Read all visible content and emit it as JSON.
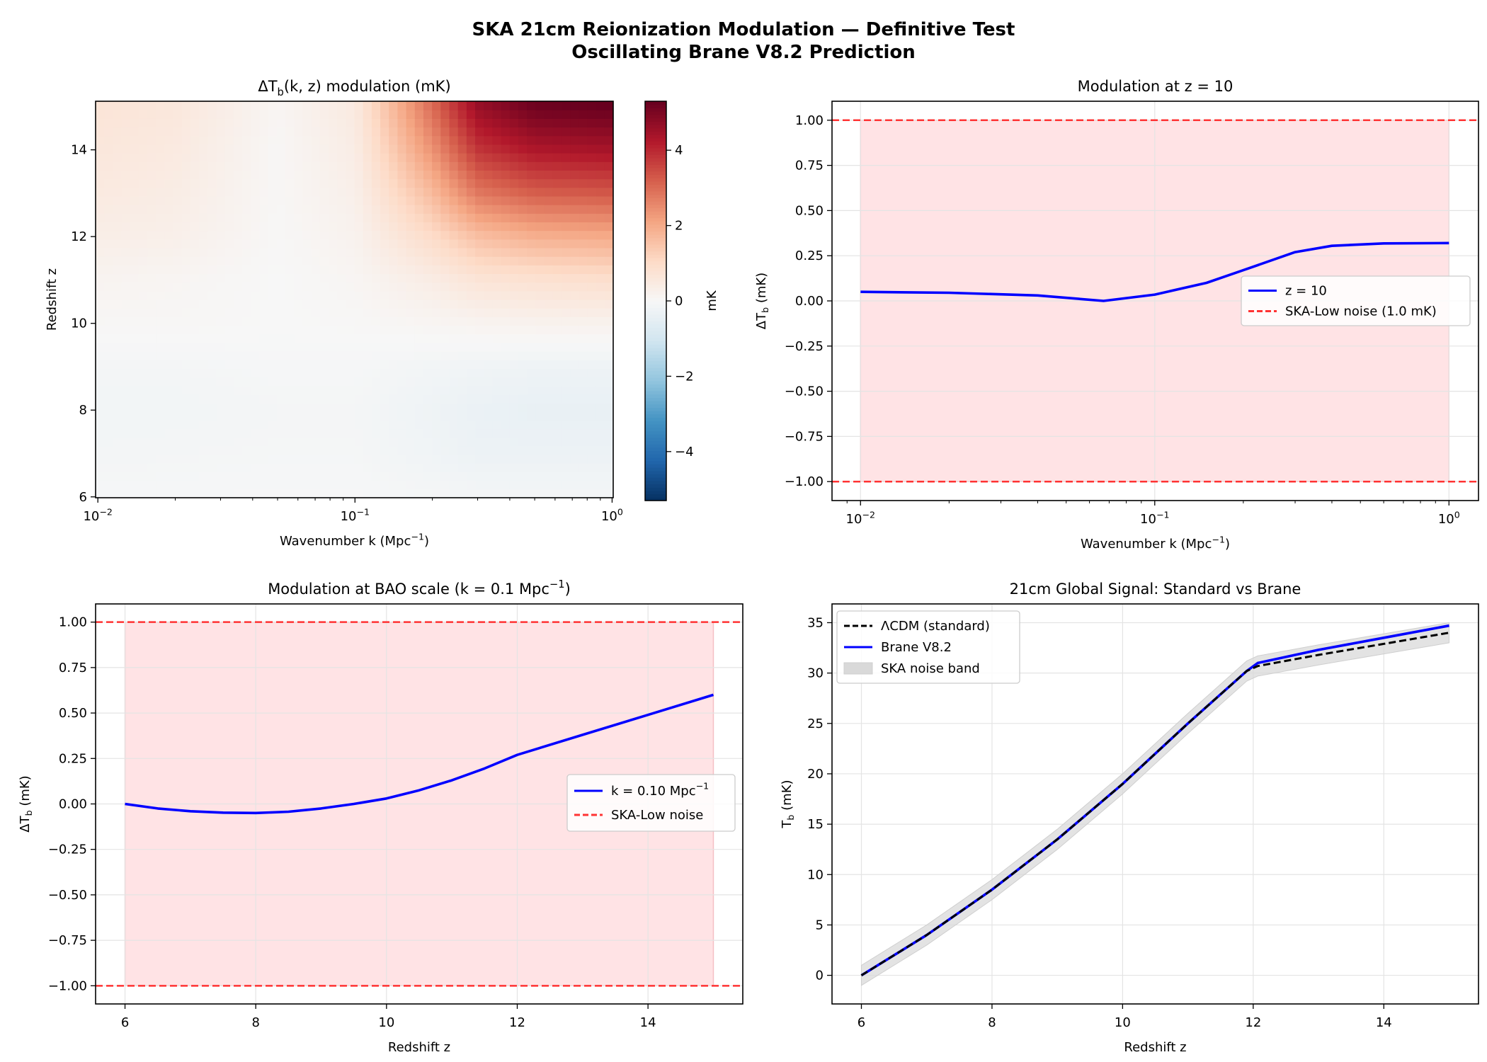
{
  "suptitle": [
    "SKA 21cm Reionization Modulation — Definitive Test",
    "Oscillating Brane V8.2 Prediction"
  ],
  "chart_data": [
    {
      "type": "heatmap",
      "title": "ΔT_{b}(k, z) modulation (mK)",
      "xlabel": "Wavenumber k (Mpc^{−1})",
      "ylabel": "Redshift z",
      "xscale": "log",
      "xlim": [
        0.0098,
        1.01
      ],
      "ylim": [
        5.98,
        15.12
      ],
      "xticks": [
        0.01,
        0.1,
        1
      ],
      "xtick_labels": [
        "10^{−2}",
        "10^{−1}",
        "10^{0}"
      ],
      "yticks": [
        6,
        8,
        10,
        12,
        14
      ],
      "ytick_labels": [
        "6",
        "8",
        "10",
        "12",
        "14"
      ],
      "k": [
        0.01,
        0.02,
        0.05,
        0.1,
        0.2,
        0.3,
        0.5,
        1.0
      ],
      "z": [
        6,
        7,
        8,
        9,
        10,
        11,
        12,
        13,
        14,
        15
      ],
      "values": [
        [
          -0.05,
          -0.05,
          -0.03,
          -0.03,
          -0.08,
          -0.1,
          -0.1,
          -0.1
        ],
        [
          -0.12,
          -0.1,
          -0.08,
          -0.08,
          -0.2,
          -0.3,
          -0.3,
          -0.3
        ],
        [
          -0.15,
          -0.15,
          -0.1,
          -0.1,
          -0.25,
          -0.35,
          -0.4,
          -0.4
        ],
        [
          -0.1,
          -0.1,
          -0.05,
          -0.05,
          -0.15,
          -0.2,
          -0.25,
          -0.25
        ],
        [
          0.05,
          0.05,
          0.0,
          0.03,
          0.1,
          0.15,
          0.2,
          0.2
        ],
        [
          0.15,
          0.1,
          0.0,
          0.1,
          0.4,
          0.7,
          0.8,
          0.9
        ],
        [
          0.35,
          0.3,
          0.03,
          0.2,
          1.0,
          1.6,
          1.9,
          2.0
        ],
        [
          0.5,
          0.4,
          0.05,
          0.3,
          1.7,
          2.8,
          3.2,
          3.3
        ],
        [
          0.6,
          0.5,
          0.05,
          0.4,
          2.4,
          3.8,
          4.3,
          4.4
        ],
        [
          0.7,
          0.6,
          0.1,
          0.5,
          3.0,
          4.6,
          5.2,
          5.3
        ]
      ],
      "colorbar": {
        "label": "mK",
        "colormap": "RdBu_r",
        "range": [
          -5.3,
          5.3
        ],
        "ticks": [
          -4,
          -2,
          0,
          2,
          4
        ],
        "tick_labels": [
          "−4",
          "−2",
          "0",
          "2",
          "4"
        ]
      }
    },
    {
      "type": "line",
      "title": "Modulation at z = 10",
      "xlabel": "Wavenumber k (Mpc^{−1})",
      "ylabel": "ΔT_{b} (mK)",
      "xscale": "log",
      "xlim": [
        0.008,
        1.26
      ],
      "ylim": [
        -1.105,
        1.105
      ],
      "grid": true,
      "xticks": [
        0.01,
        0.1,
        1
      ],
      "xtick_labels": [
        "10^{−2}",
        "10^{−1}",
        "10^{0}"
      ],
      "yticks": [
        -1,
        -0.75,
        -0.5,
        -0.25,
        0,
        0.25,
        0.5,
        0.75,
        1
      ],
      "ytick_labels": [
        "−1.00",
        "−0.75",
        "−0.50",
        "−0.25",
        "0.00",
        "0.25",
        "0.50",
        "0.75",
        "1.00"
      ],
      "band": {
        "x": [
          0.01,
          1
        ],
        "y": [
          -1,
          1
        ],
        "color": "#ffe3e5"
      },
      "series": [
        {
          "name": "z = 10",
          "color": "#0000ff",
          "style": "solid",
          "x": [
            0.01,
            0.02,
            0.04,
            0.067,
            0.1,
            0.15,
            0.2,
            0.3,
            0.4,
            0.6,
            1.0
          ],
          "y": [
            0.05,
            0.045,
            0.03,
            0.0,
            0.035,
            0.1,
            0.17,
            0.27,
            0.305,
            0.318,
            0.32
          ]
        }
      ],
      "hlines": {
        "name": "SKA-Low noise (1.0 mK)",
        "y": [
          1,
          -1
        ],
        "color": "#ff3333",
        "style": "dashed"
      },
      "legend": "center-right"
    },
    {
      "type": "line",
      "title": "Modulation at BAO scale (k = 0.1 Mpc^{−1})",
      "xlabel": "Redshift z",
      "ylabel": "ΔT_{b} (mK)",
      "xscale": "linear",
      "xlim": [
        5.55,
        15.45
      ],
      "ylim": [
        -1.1,
        1.1
      ],
      "grid": true,
      "xticks": [
        6,
        8,
        10,
        12,
        14
      ],
      "xtick_labels": [
        "6",
        "8",
        "10",
        "12",
        "14"
      ],
      "yticks": [
        -1,
        -0.75,
        -0.5,
        -0.25,
        0,
        0.25,
        0.5,
        0.75,
        1
      ],
      "ytick_labels": [
        "−1.00",
        "−0.75",
        "−0.50",
        "−0.25",
        "0.00",
        "0.25",
        "0.50",
        "0.75",
        "1.00"
      ],
      "band": {
        "x": [
          6,
          15
        ],
        "y": [
          -1,
          1
        ],
        "color": "#ffe3e5"
      },
      "series": [
        {
          "name": "k = 0.10 Mpc^{−1}",
          "color": "#0000ff",
          "style": "solid",
          "x": [
            6,
            6.5,
            7,
            7.5,
            8,
            8.5,
            9,
            9.5,
            10,
            10.5,
            11,
            11.5,
            12,
            13,
            14,
            15
          ],
          "y": [
            0,
            -0.025,
            -0.04,
            -0.048,
            -0.05,
            -0.043,
            -0.025,
            0.0,
            0.03,
            0.075,
            0.13,
            0.195,
            0.27,
            0.38,
            0.49,
            0.6
          ]
        }
      ],
      "hlines": {
        "name": "SKA-Low noise",
        "y": [
          1,
          -1
        ],
        "color": "#ff3333",
        "style": "dashed"
      },
      "legend": "center-right"
    },
    {
      "type": "line",
      "title": "21cm Global Signal: Standard vs Brane",
      "xlabel": "Redshift z",
      "ylabel": "T_{b} (mK)",
      "xscale": "linear",
      "xlim": [
        5.55,
        15.45
      ],
      "ylim": [
        -2.84,
        36.86
      ],
      "grid": true,
      "xticks": [
        6,
        8,
        10,
        12,
        14
      ],
      "xtick_labels": [
        "6",
        "8",
        "10",
        "12",
        "14"
      ],
      "yticks": [
        0,
        5,
        10,
        15,
        20,
        25,
        30,
        35
      ],
      "ytick_labels": [
        "0",
        "5",
        "10",
        "15",
        "20",
        "25",
        "30",
        "35"
      ],
      "series": [
        {
          "name": "ΛCDM (standard)",
          "color": "#000000",
          "style": "dashed",
          "x": [
            6,
            7,
            8,
            9,
            10,
            11,
            11.9,
            12.07,
            13,
            14,
            15
          ],
          "y": [
            0,
            4,
            8.5,
            13.5,
            19,
            25,
            30.2,
            30.7,
            31.8,
            32.9,
            34.0
          ]
        },
        {
          "name": "Brane V8.2",
          "color": "#0000ff",
          "style": "solid",
          "x": [
            6,
            7,
            8,
            9,
            10,
            11,
            11.9,
            12.07,
            13,
            14,
            15
          ],
          "y": [
            0,
            4,
            8.5,
            13.5,
            19,
            25,
            30.2,
            31.0,
            32.3,
            33.5,
            34.7
          ]
        }
      ],
      "noise_band": {
        "name": "SKA noise band",
        "color": "#d9d9d9",
        "halfwidth": 1.0
      },
      "legend": "upper-left"
    }
  ]
}
